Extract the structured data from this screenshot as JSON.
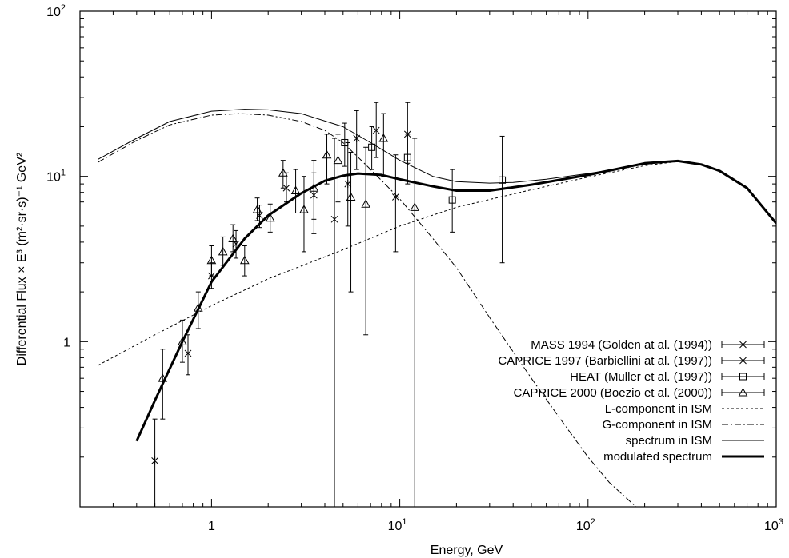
{
  "chart_data": {
    "type": "scatter",
    "xlabel": "Energy, GeV",
    "ylabel": "Differential Flux × E³ (m²·sr·s)⁻¹ GeV²",
    "x_scale": "log",
    "y_scale": "log",
    "xlim": [
      0.2,
      1000
    ],
    "ylim": [
      0.1,
      100
    ],
    "x_ticks": [
      {
        "value": 1,
        "base": "1",
        "exp": ""
      },
      {
        "value": 10,
        "base": "10",
        "exp": "1"
      },
      {
        "value": 100,
        "base": "10",
        "exp": "2"
      },
      {
        "value": 1000,
        "base": "10",
        "exp": "3"
      }
    ],
    "y_ticks": [
      {
        "value": 1,
        "base": "1",
        "exp": ""
      },
      {
        "value": 10,
        "base": "10",
        "exp": "1"
      },
      {
        "value": 100,
        "base": "10",
        "exp": "2"
      }
    ],
    "legend_position": "bottom-right",
    "series": [
      {
        "name": "MASS 1994 (Golden at al. (1994))",
        "kind": "points",
        "marker": "x",
        "points": [
          {
            "x": 1.0,
            "y": 2.5,
            "ylo": 2.1,
            "yhi": 3.0
          },
          {
            "x": 1.8,
            "y": 5.8,
            "ylo": 4.9,
            "yhi": 6.7
          },
          {
            "x": 4.5,
            "y": 5.5,
            "ylo": 0.1,
            "yhi": 17.0
          },
          {
            "x": 7.5,
            "y": 19.0,
            "ylo": 13.0,
            "yhi": 28.0
          },
          {
            "x": 9.5,
            "y": 7.5,
            "ylo": 3.5,
            "yhi": 13.5
          },
          {
            "x": 11.0,
            "y": 18.0,
            "ylo": 12.0,
            "yhi": 28.0
          }
        ]
      },
      {
        "name": "CAPRICE 1997 (Barbiellini at al. (1997))",
        "kind": "points",
        "marker": "star",
        "points": [
          {
            "x": 0.5,
            "y": 0.19,
            "ylo": 0.1,
            "yhi": 0.34
          },
          {
            "x": 0.75,
            "y": 0.85,
            "ylo": 0.63,
            "yhi": 1.1
          },
          {
            "x": 1.35,
            "y": 3.9,
            "ylo": 3.2,
            "yhi": 4.7
          },
          {
            "x": 2.5,
            "y": 8.5,
            "ylo": 7.0,
            "yhi": 10.5
          },
          {
            "x": 3.5,
            "y": 7.7,
            "ylo": 5.5,
            "yhi": 10.5
          },
          {
            "x": 5.3,
            "y": 9.0,
            "ylo": 5.0,
            "yhi": 16.0
          },
          {
            "x": 5.9,
            "y": 17.0,
            "ylo": 11.0,
            "yhi": 25.0
          }
        ]
      },
      {
        "name": "HEAT (Muller et al. (1997))",
        "kind": "points",
        "marker": "square",
        "points": [
          {
            "x": 5.1,
            "y": 16.0,
            "ylo": 11.5,
            "yhi": 21.0
          },
          {
            "x": 7.1,
            "y": 15.0,
            "ylo": 11.0,
            "yhi": 20.0
          },
          {
            "x": 11.0,
            "y": 13.0,
            "ylo": 9.0,
            "yhi": 18.0
          },
          {
            "x": 19.0,
            "y": 7.2,
            "ylo": 4.6,
            "yhi": 11.0
          },
          {
            "x": 35.0,
            "y": 9.5,
            "ylo": 3.0,
            "yhi": 17.5
          }
        ]
      },
      {
        "name": "CAPRICE 2000 (Boezio et al. (2000))",
        "kind": "points",
        "marker": "triangle",
        "points": [
          {
            "x": 0.55,
            "y": 0.6,
            "ylo": 0.34,
            "yhi": 0.9
          },
          {
            "x": 0.7,
            "y": 1.0,
            "ylo": 0.75,
            "yhi": 1.35
          },
          {
            "x": 0.85,
            "y": 1.6,
            "ylo": 1.2,
            "yhi": 2.0
          },
          {
            "x": 1.0,
            "y": 3.1,
            "ylo": 2.5,
            "yhi": 3.8
          },
          {
            "x": 1.15,
            "y": 3.5,
            "ylo": 2.9,
            "yhi": 4.3
          },
          {
            "x": 1.3,
            "y": 4.2,
            "ylo": 3.5,
            "yhi": 5.1
          },
          {
            "x": 1.5,
            "y": 3.1,
            "ylo": 2.5,
            "yhi": 3.8
          },
          {
            "x": 1.75,
            "y": 6.3,
            "ylo": 5.4,
            "yhi": 7.4
          },
          {
            "x": 2.05,
            "y": 5.6,
            "ylo": 4.6,
            "yhi": 6.8
          },
          {
            "x": 2.4,
            "y": 10.5,
            "ylo": 8.5,
            "yhi": 12.5
          },
          {
            "x": 2.8,
            "y": 8.2,
            "ylo": 6.0,
            "yhi": 11.0
          },
          {
            "x": 3.1,
            "y": 6.3,
            "ylo": 3.5,
            "yhi": 10.0
          },
          {
            "x": 3.5,
            "y": 8.5,
            "ylo": 4.5,
            "yhi": 12.5
          },
          {
            "x": 4.1,
            "y": 13.5,
            "ylo": 9.0,
            "yhi": 18.0
          },
          {
            "x": 4.7,
            "y": 12.5,
            "ylo": 7.0,
            "yhi": 18.0
          },
          {
            "x": 5.5,
            "y": 7.5,
            "ylo": 2.0,
            "yhi": 14.0
          },
          {
            "x": 6.6,
            "y": 6.8,
            "ylo": 1.1,
            "yhi": 15.0
          },
          {
            "x": 8.2,
            "y": 17.0,
            "ylo": 10.0,
            "yhi": 24.0
          },
          {
            "x": 12.0,
            "y": 6.5,
            "ylo": 0.1,
            "yhi": 17.0
          }
        ]
      },
      {
        "name": "L-component in ISM",
        "kind": "line",
        "style": "dotted",
        "points": [
          [
            0.25,
            0.72
          ],
          [
            0.5,
            1.1
          ],
          [
            1,
            1.65
          ],
          [
            2,
            2.4
          ],
          [
            5,
            3.6
          ],
          [
            10,
            5.0
          ],
          [
            20,
            6.5
          ],
          [
            50,
            8.3
          ],
          [
            100,
            9.9
          ],
          [
            200,
            11.6
          ],
          [
            300,
            12.3
          ]
        ]
      },
      {
        "name": "G-component in ISM",
        "kind": "line",
        "style": "dash-dot",
        "points": [
          [
            0.25,
            12.2
          ],
          [
            0.4,
            16.5
          ],
          [
            0.6,
            20.5
          ],
          [
            1.0,
            23.5
          ],
          [
            1.4,
            24.0
          ],
          [
            2.0,
            23.5
          ],
          [
            3.0,
            21.5
          ],
          [
            4.0,
            19.0
          ],
          [
            5.0,
            16.0
          ],
          [
            7.0,
            11.0
          ],
          [
            10.0,
            7.3
          ],
          [
            15.0,
            4.2
          ],
          [
            20.0,
            2.8
          ],
          [
            30.0,
            1.4
          ],
          [
            50.0,
            0.6
          ],
          [
            70.0,
            0.35
          ],
          [
            100.0,
            0.2
          ],
          [
            130.0,
            0.14
          ],
          [
            180.0,
            0.1
          ]
        ]
      },
      {
        "name": "spectrum in ISM",
        "kind": "line",
        "style": "solid-thin",
        "points": [
          [
            0.25,
            12.7
          ],
          [
            0.4,
            17.0
          ],
          [
            0.6,
            21.5
          ],
          [
            1.0,
            24.8
          ],
          [
            1.5,
            25.5
          ],
          [
            2.0,
            25.3
          ],
          [
            3.0,
            24.0
          ],
          [
            5.0,
            20.0
          ],
          [
            7.0,
            16.0
          ],
          [
            10.0,
            12.5
          ],
          [
            15.0,
            10.0
          ],
          [
            20.0,
            9.3
          ],
          [
            30.0,
            9.1
          ],
          [
            40.0,
            9.2
          ],
          [
            60.0,
            9.6
          ],
          [
            100.0,
            10.4
          ],
          [
            200.0,
            11.8
          ],
          [
            300.0,
            12.5
          ]
        ]
      },
      {
        "name": "modulated spectrum",
        "kind": "line",
        "style": "solid-thick",
        "points": [
          [
            0.4,
            0.25
          ],
          [
            0.5,
            0.44
          ],
          [
            0.7,
            1.0
          ],
          [
            1.0,
            2.3
          ],
          [
            1.5,
            4.2
          ],
          [
            2.0,
            5.8
          ],
          [
            3.0,
            7.9
          ],
          [
            4.0,
            9.4
          ],
          [
            5.0,
            10.1
          ],
          [
            6.0,
            10.4
          ],
          [
            8.0,
            10.2
          ],
          [
            10.0,
            9.6
          ],
          [
            15.0,
            8.7
          ],
          [
            20.0,
            8.2
          ],
          [
            30.0,
            8.2
          ],
          [
            50.0,
            8.9
          ],
          [
            100.0,
            10.2
          ],
          [
            200.0,
            12.0
          ],
          [
            300.0,
            12.4
          ],
          [
            400.0,
            11.8
          ],
          [
            500.0,
            10.8
          ],
          [
            700.0,
            8.5
          ],
          [
            1000.0,
            5.2
          ]
        ]
      }
    ]
  }
}
